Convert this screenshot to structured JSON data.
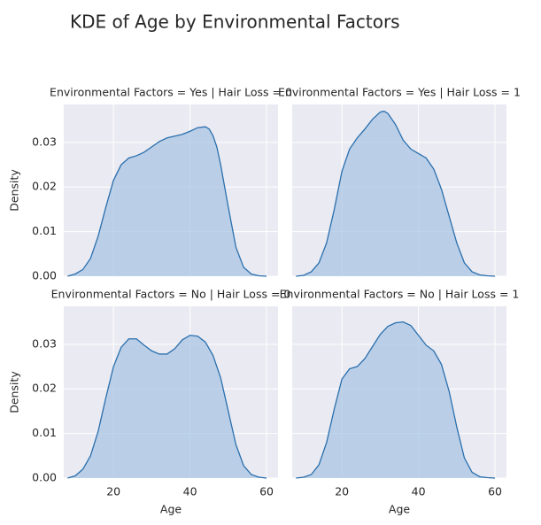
{
  "chart_data": {
    "type": "area",
    "title": "KDE of Age by Environmental Factors",
    "xlabel": "Age",
    "ylabel": "Density",
    "xlim": [
      7,
      63
    ],
    "ylim": [
      0,
      0.0385
    ],
    "x_ticks": [
      20,
      40,
      60
    ],
    "y_ticks": [
      0.0,
      0.01,
      0.02,
      0.03
    ],
    "x_tick_labels": [
      "20",
      "40",
      "60"
    ],
    "y_tick_labels": [
      "0.00",
      "0.01",
      "0.02",
      "0.03"
    ],
    "grid": true,
    "color": "#2a6fad",
    "fill_color": "#a9c6e3",
    "panels": [
      {
        "title": "Environmental Factors = Yes | Hair Loss = 0",
        "x": [
          8,
          10,
          12,
          14,
          16,
          18,
          20,
          22,
          24,
          26,
          28,
          30,
          32,
          34,
          36,
          38,
          40,
          42,
          44,
          45,
          46,
          47,
          48,
          50,
          52,
          54,
          56,
          58,
          60
        ],
        "y": [
          0.0,
          0.0005,
          0.0015,
          0.004,
          0.009,
          0.0155,
          0.0215,
          0.025,
          0.0265,
          0.027,
          0.0278,
          0.029,
          0.0302,
          0.031,
          0.0314,
          0.0318,
          0.0325,
          0.0333,
          0.0335,
          0.033,
          0.0315,
          0.029,
          0.025,
          0.0155,
          0.0065,
          0.002,
          0.0005,
          0.0001,
          0.0
        ]
      },
      {
        "title": "Environmental Factors = Yes | Hair Loss = 1",
        "x": [
          8,
          10,
          12,
          14,
          16,
          18,
          20,
          22,
          24,
          26,
          28,
          30,
          31,
          32,
          34,
          36,
          38,
          40,
          42,
          44,
          46,
          48,
          50,
          52,
          54,
          56,
          58,
          60
        ],
        "y": [
          0.0,
          0.0002,
          0.001,
          0.003,
          0.0075,
          0.015,
          0.0235,
          0.0285,
          0.031,
          0.033,
          0.0352,
          0.0368,
          0.037,
          0.0365,
          0.034,
          0.0305,
          0.0285,
          0.0275,
          0.0265,
          0.024,
          0.0195,
          0.0135,
          0.0075,
          0.003,
          0.001,
          0.0003,
          0.0001,
          0.0
        ]
      },
      {
        "title": "Environmental Factors = No | Hair Loss = 0",
        "x": [
          8,
          10,
          12,
          14,
          16,
          18,
          20,
          22,
          24,
          26,
          28,
          30,
          32,
          34,
          36,
          38,
          40,
          42,
          44,
          46,
          48,
          50,
          52,
          54,
          56,
          58,
          60
        ],
        "y": [
          0.0,
          0.0005,
          0.002,
          0.005,
          0.0105,
          0.018,
          0.025,
          0.0293,
          0.0312,
          0.0312,
          0.0298,
          0.0285,
          0.0278,
          0.0278,
          0.029,
          0.031,
          0.032,
          0.0318,
          0.0305,
          0.0275,
          0.0225,
          0.015,
          0.0075,
          0.0028,
          0.0008,
          0.0002,
          0.0
        ]
      },
      {
        "title": "Environmental Factors = No | Hair Loss = 1",
        "x": [
          8,
          10,
          12,
          14,
          16,
          18,
          20,
          22,
          24,
          26,
          28,
          30,
          32,
          34,
          36,
          38,
          40,
          42,
          44,
          46,
          48,
          50,
          52,
          54,
          56,
          58,
          60
        ],
        "y": [
          0.0,
          0.0002,
          0.0008,
          0.003,
          0.008,
          0.0155,
          0.0222,
          0.0245,
          0.025,
          0.0268,
          0.0295,
          0.0322,
          0.034,
          0.0348,
          0.035,
          0.0342,
          0.032,
          0.0298,
          0.0285,
          0.0255,
          0.0195,
          0.0115,
          0.0045,
          0.0013,
          0.0003,
          0.0001,
          0.0
        ]
      }
    ]
  }
}
